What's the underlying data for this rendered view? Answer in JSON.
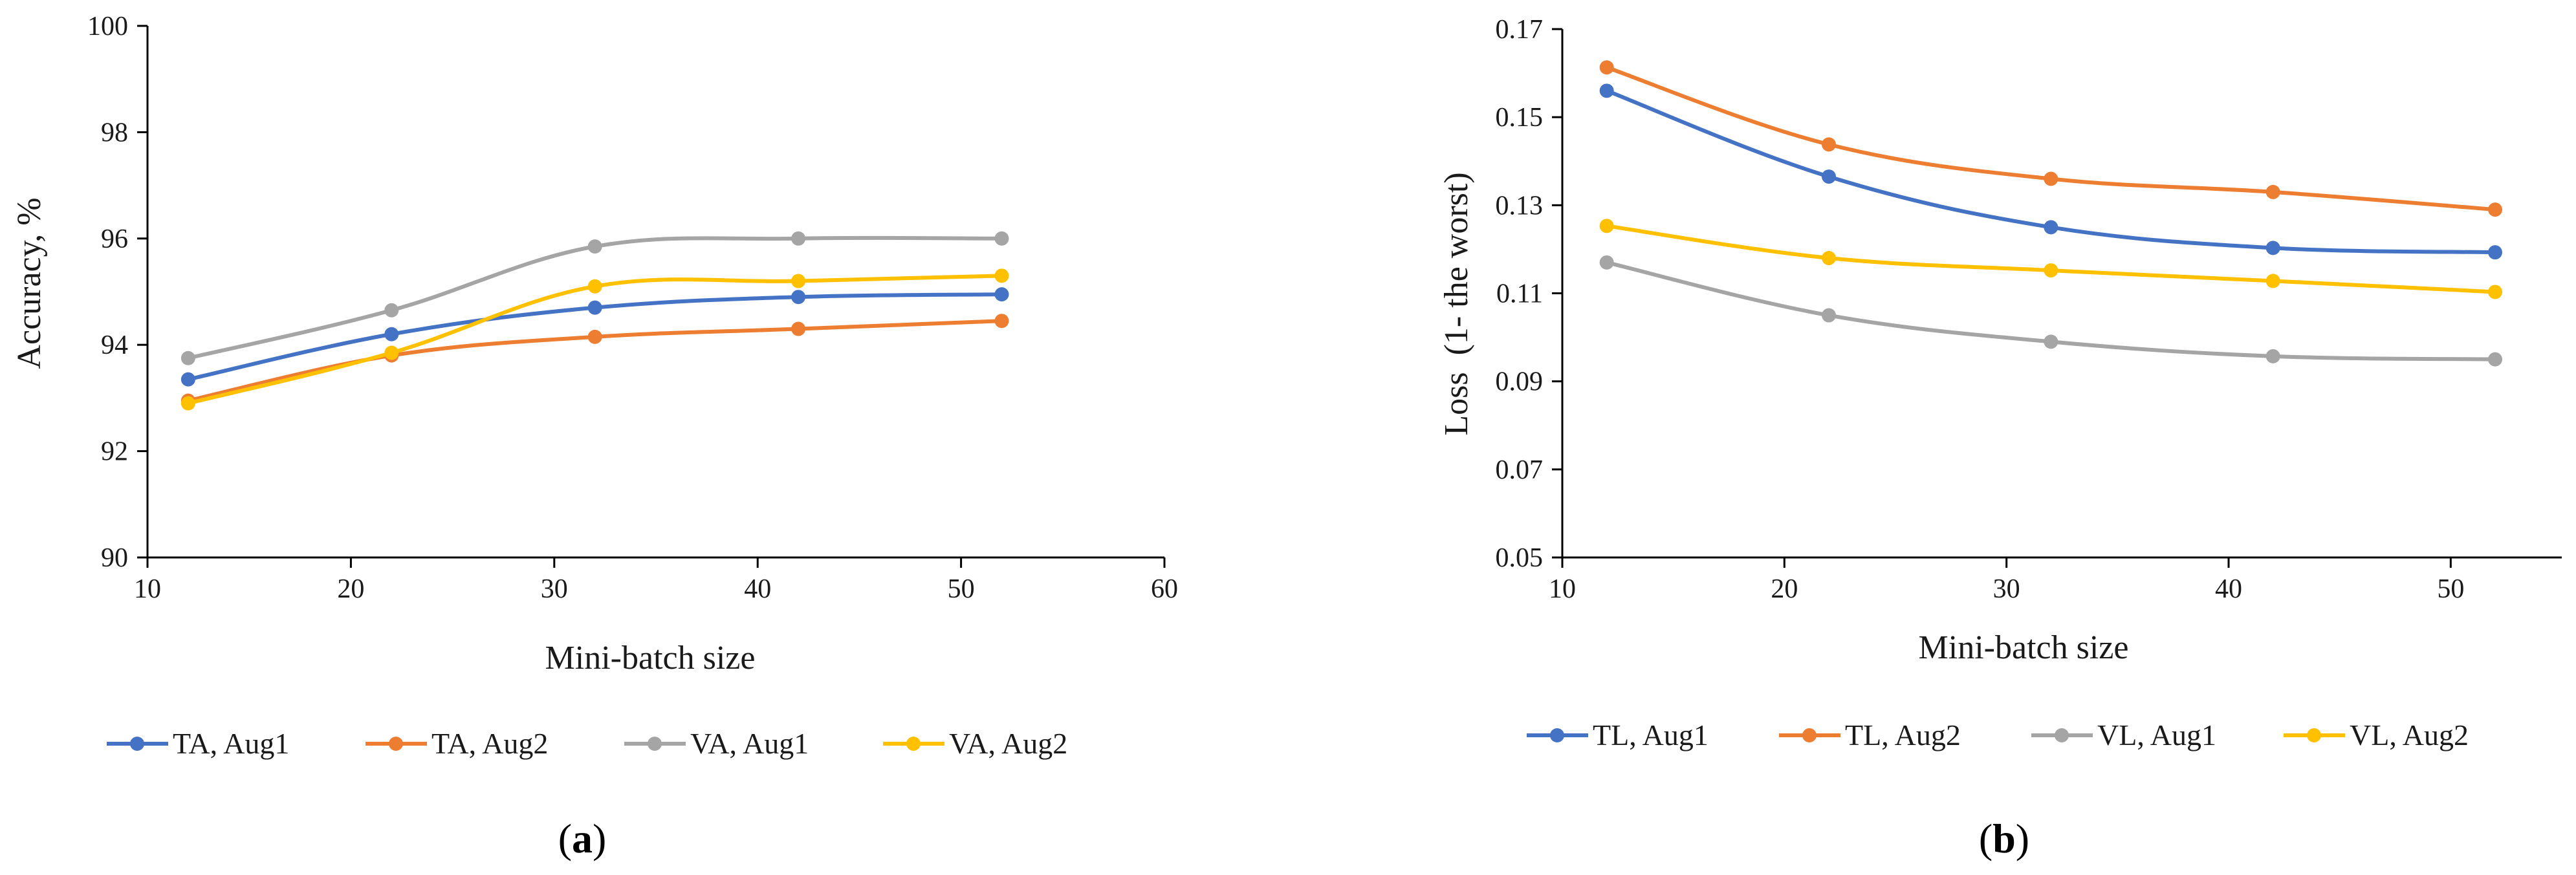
{
  "chart_data": [
    {
      "type": "line",
      "panel_label": "a",
      "xlabel": "Mini-batch size",
      "ylabel": "Accuracy, %",
      "xlim": [
        10,
        60
      ],
      "ylim": [
        90,
        100
      ],
      "xticks": [
        10,
        20,
        30,
        40,
        50,
        60
      ],
      "yticks": [
        90,
        92,
        94,
        96,
        98,
        100
      ],
      "ytick_labels": [
        "90",
        "92",
        "94",
        "96",
        "98",
        "100"
      ],
      "grid": false,
      "legend_position": "bottom",
      "x": [
        12,
        22,
        32,
        42,
        52
      ],
      "series": [
        {
          "name": "TA, Aug1",
          "color": "#4472C4",
          "values": [
            93.35,
            94.2,
            94.7,
            94.9,
            94.95
          ]
        },
        {
          "name": "TA, Aug2",
          "color": "#ED7D31",
          "values": [
            92.95,
            93.8,
            94.15,
            94.3,
            94.45
          ]
        },
        {
          "name": "VA, Aug1",
          "color": "#A5A5A5",
          "values": [
            93.75,
            94.65,
            95.85,
            96.0,
            96.0
          ]
        },
        {
          "name": "VA, Aug2",
          "color": "#FFC000",
          "values": [
            92.9,
            93.85,
            95.1,
            95.2,
            95.3
          ]
        }
      ]
    },
    {
      "type": "line",
      "panel_label": "b",
      "xlabel": "Mini-batch size",
      "ylabel": "Loss  (1- the worst)",
      "xlim": [
        10,
        55
      ],
      "ylim": [
        0.05,
        0.17
      ],
      "xticks": [
        10,
        20,
        30,
        40,
        50
      ],
      "yticks": [
        0.05,
        0.07,
        0.09,
        0.11,
        0.13,
        0.15,
        0.17
      ],
      "ytick_labels": [
        "0.05",
        "0.07",
        "0.09",
        "0.11",
        "0.13",
        "0.15",
        "0.17"
      ],
      "grid": false,
      "legend_position": "bottom",
      "x": [
        12,
        22,
        32,
        42,
        52
      ],
      "series": [
        {
          "name": "TL, Aug1",
          "color": "#4472C4",
          "values": [
            0.156,
            0.1365,
            0.125,
            0.1203,
            0.1193
          ]
        },
        {
          "name": "TL, Aug2",
          "color": "#ED7D31",
          "values": [
            0.1613,
            0.1438,
            0.136,
            0.133,
            0.129
          ]
        },
        {
          "name": "VL, Aug1",
          "color": "#A5A5A5",
          "values": [
            0.117,
            0.105,
            0.099,
            0.0957,
            0.095
          ]
        },
        {
          "name": "VL, Aug2",
          "color": "#FFC000",
          "values": [
            0.1253,
            0.118,
            0.1152,
            0.1128,
            0.1103
          ]
        }
      ]
    }
  ]
}
